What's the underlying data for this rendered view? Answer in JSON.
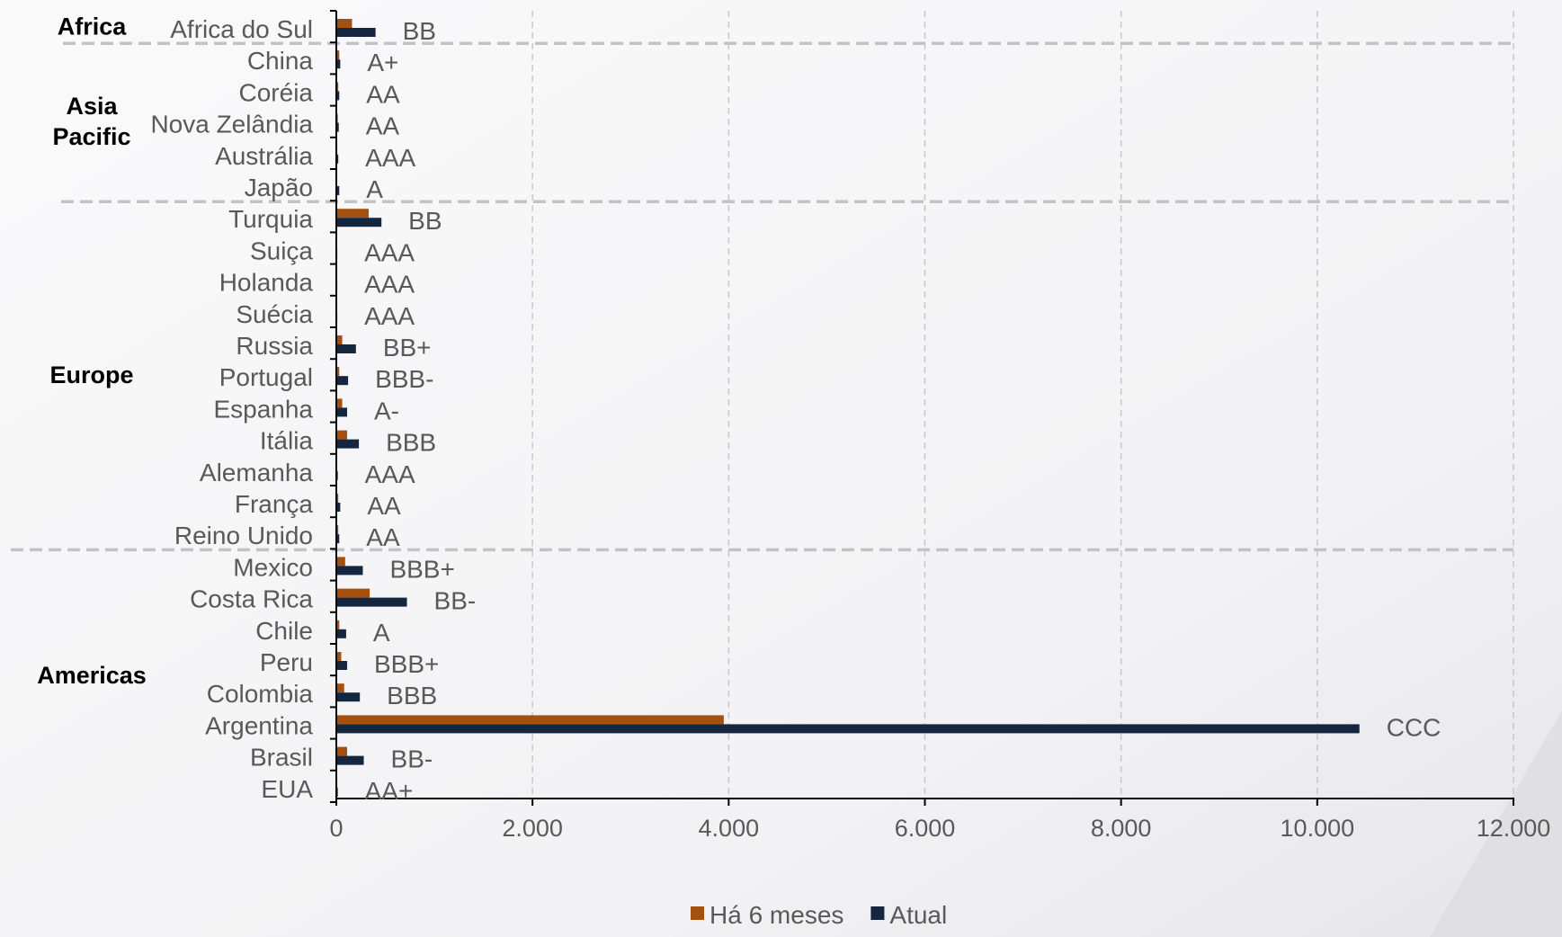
{
  "chart_data": {
    "type": "bar",
    "orientation": "horizontal",
    "title": "",
    "xlabel": "",
    "ylabel": "",
    "xlim": [
      0,
      12000
    ],
    "xticks": [
      0,
      2000,
      4000,
      6000,
      8000,
      10000,
      12000
    ],
    "xtick_labels": [
      "0",
      "2.000",
      "4.000",
      "6.000",
      "8.000",
      "10.000",
      "12.000"
    ],
    "grid": "vertical dashed",
    "legend_position": "bottom-center",
    "colors": {
      "series_0": "#A5500F",
      "series_1": "#14273F"
    },
    "categories": [
      "Africa do Sul",
      "China",
      "Coréia",
      "Nova Zelândia",
      "Austrália",
      "Japão",
      "Turquia",
      "Suiça",
      "Holanda",
      "Suécia",
      "Russia",
      "Portugal",
      "Espanha",
      "Itália",
      "Alemanha",
      "França",
      "Reino Unido",
      "Mexico",
      "Costa Rica",
      "Chile",
      "Peru",
      "Colombia",
      "Argentina",
      "Brasil",
      "EUA"
    ],
    "ratings": [
      "BB",
      "A+",
      "AA",
      "AA",
      "AAA",
      "A",
      "BB",
      "AAA",
      "AAA",
      "AAA",
      "BB+",
      "BBB-",
      "A-",
      "BBB",
      "AAA",
      "AA",
      "AA",
      "BBB+",
      "BB-",
      "A",
      "BBB+",
      "BBB",
      "CCC",
      "BB-",
      "AA+"
    ],
    "series": [
      {
        "name": "Há 6 meses",
        "values": [
          160,
          30,
          20,
          15,
          10,
          8,
          330,
          5,
          5,
          5,
          60,
          30,
          60,
          110,
          8,
          20,
          20,
          90,
          340,
          30,
          50,
          80,
          3950,
          110,
          10
        ]
      },
      {
        "name": "Atual",
        "values": [
          400,
          40,
          30,
          25,
          20,
          30,
          460,
          10,
          10,
          10,
          200,
          120,
          110,
          230,
          15,
          40,
          30,
          270,
          720,
          100,
          110,
          240,
          10430,
          280,
          15
        ]
      }
    ],
    "regions": [
      {
        "name": "Africa",
        "start": 0,
        "end": 0
      },
      {
        "name": "Asia Pacific",
        "start": 1,
        "end": 5
      },
      {
        "name": "Europe",
        "start": 6,
        "end": 16
      },
      {
        "name": "Americas",
        "start": 17,
        "end": 24
      }
    ]
  }
}
